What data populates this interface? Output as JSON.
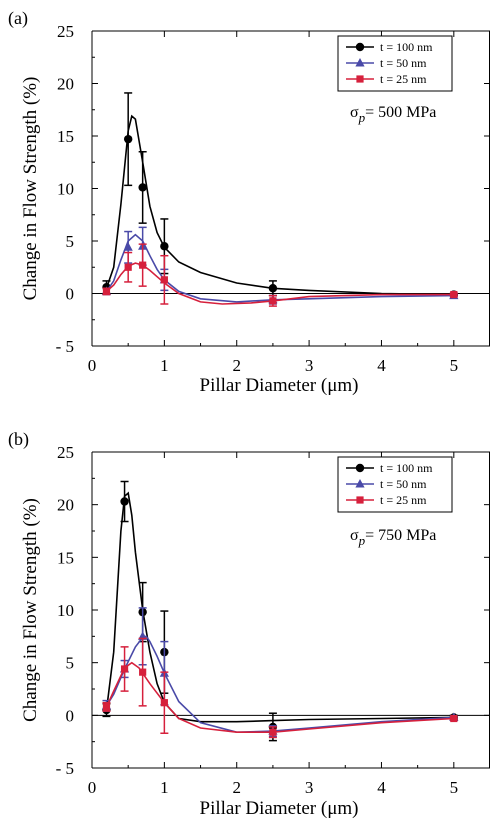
{
  "chart_data": [
    {
      "type": "line",
      "panel_label": "(a)",
      "xlabel": "Pillar Diameter (μm)",
      "ylabel": "Change in Flow Strength (%)",
      "xlim": [
        0,
        5.5
      ],
      "ylim": [
        -5,
        25
      ],
      "x_ticks": [
        0,
        1,
        2,
        3,
        4,
        5
      ],
      "y_ticks": [
        -5,
        0,
        5,
        10,
        15,
        20,
        25
      ],
      "x_tick_labels": [
        "0",
        "1",
        "2",
        "3",
        "4",
        "5"
      ],
      "y_tick_labels": [
        "- 5",
        "0",
        "5",
        "10",
        "15",
        "20",
        "25"
      ],
      "legend_position": "top-right",
      "annotation": {
        "sigma": "σ",
        "sub": "p",
        "text": "= 500 MPa"
      },
      "series": [
        {
          "name": "t = 100 nm",
          "color": "#000000",
          "marker": "circle",
          "points": [
            {
              "x": 0.2,
              "y": 0.6,
              "err": 0.6
            },
            {
              "x": 0.5,
              "y": 14.7,
              "err": 4.4
            },
            {
              "x": 0.7,
              "y": 10.1,
              "err": 3.4
            },
            {
              "x": 1.0,
              "y": 4.5,
              "err": 2.6
            },
            {
              "x": 2.5,
              "y": 0.5,
              "err": 0.7
            },
            {
              "x": 5.0,
              "y": -0.1,
              "err": 0.1
            }
          ],
          "curve": [
            [
              0.2,
              0.5
            ],
            [
              0.3,
              2.5
            ],
            [
              0.4,
              8.5
            ],
            [
              0.5,
              15.5
            ],
            [
              0.55,
              16.9
            ],
            [
              0.6,
              16.6
            ],
            [
              0.7,
              12.5
            ],
            [
              0.8,
              8.3
            ],
            [
              0.9,
              5.8
            ],
            [
              1.0,
              4.4
            ],
            [
              1.2,
              3.0
            ],
            [
              1.5,
              2.0
            ],
            [
              2.0,
              1.0
            ],
            [
              2.5,
              0.5
            ],
            [
              3.0,
              0.3
            ],
            [
              4.0,
              0.0
            ],
            [
              5.0,
              -0.1
            ]
          ]
        },
        {
          "name": "t = 50 nm",
          "color": "#4a4aa8",
          "marker": "triangle",
          "points": [
            {
              "x": 0.2,
              "y": 0.2,
              "err": 0.3
            },
            {
              "x": 0.5,
              "y": 4.4,
              "err": 1.5
            },
            {
              "x": 0.7,
              "y": 4.5,
              "err": 1.8
            },
            {
              "x": 1.0,
              "y": 1.3,
              "err": 1.0
            },
            {
              "x": 2.5,
              "y": -0.6,
              "err": 0.4
            },
            {
              "x": 5.0,
              "y": -0.2,
              "err": 0.1
            }
          ],
          "curve": [
            [
              0.2,
              0.2
            ],
            [
              0.3,
              1.2
            ],
            [
              0.4,
              3.2
            ],
            [
              0.5,
              5.0
            ],
            [
              0.6,
              5.6
            ],
            [
              0.7,
              5.0
            ],
            [
              0.8,
              3.6
            ],
            [
              0.9,
              2.3
            ],
            [
              1.0,
              1.3
            ],
            [
              1.2,
              0.2
            ],
            [
              1.5,
              -0.5
            ],
            [
              2.0,
              -0.8
            ],
            [
              2.5,
              -0.6
            ],
            [
              3.0,
              -0.5
            ],
            [
              4.0,
              -0.3
            ],
            [
              5.0,
              -0.2
            ]
          ]
        },
        {
          "name": "t = 25 nm",
          "color": "#d6203c",
          "marker": "square",
          "points": [
            {
              "x": 0.2,
              "y": 0.2,
              "err": 0.3
            },
            {
              "x": 0.5,
              "y": 2.5,
              "err": 1.4
            },
            {
              "x": 0.7,
              "y": 2.7,
              "err": 2.0
            },
            {
              "x": 1.0,
              "y": 1.3,
              "err": 2.3
            },
            {
              "x": 2.5,
              "y": -0.7,
              "err": 0.5
            },
            {
              "x": 5.0,
              "y": -0.1,
              "err": 0.1
            }
          ],
          "curve": [
            [
              0.2,
              0.2
            ],
            [
              0.3,
              0.8
            ],
            [
              0.4,
              1.8
            ],
            [
              0.5,
              2.6
            ],
            [
              0.6,
              2.9
            ],
            [
              0.7,
              2.7
            ],
            [
              0.8,
              2.2
            ],
            [
              0.9,
              1.6
            ],
            [
              1.0,
              1.0
            ],
            [
              1.2,
              0.0
            ],
            [
              1.5,
              -0.8
            ],
            [
              1.8,
              -1.0
            ],
            [
              2.2,
              -0.9
            ],
            [
              2.5,
              -0.7
            ],
            [
              3.0,
              -0.3
            ],
            [
              4.0,
              -0.1
            ],
            [
              5.0,
              -0.1
            ]
          ]
        }
      ]
    },
    {
      "type": "line",
      "panel_label": "(b)",
      "xlabel": "Pillar Diameter (μm)",
      "ylabel": "Change in Flow Strength (%)",
      "xlim": [
        0,
        5.5
      ],
      "ylim": [
        -5,
        25
      ],
      "x_ticks": [
        0,
        1,
        2,
        3,
        4,
        5
      ],
      "y_ticks": [
        -5,
        0,
        5,
        10,
        15,
        20,
        25
      ],
      "x_tick_labels": [
        "0",
        "1",
        "2",
        "3",
        "4",
        "5"
      ],
      "y_tick_labels": [
        "- 5",
        "0",
        "5",
        "10",
        "15",
        "20",
        "25"
      ],
      "legend_position": "top-right",
      "annotation": {
        "sigma": "σ",
        "sub": "p",
        "text": "= 750 MPa"
      },
      "series": [
        {
          "name": "t = 100 nm",
          "color": "#000000",
          "marker": "circle",
          "points": [
            {
              "x": 0.2,
              "y": 0.5,
              "err": 0.6
            },
            {
              "x": 0.45,
              "y": 20.3,
              "err": 1.9
            },
            {
              "x": 0.7,
              "y": 9.8,
              "err": 2.8
            },
            {
              "x": 1.0,
              "y": 6.0,
              "err": 3.9
            },
            {
              "x": 2.5,
              "y": -1.1,
              "err": 1.3
            },
            {
              "x": 5.0,
              "y": -0.2,
              "err": 0.2
            }
          ],
          "curve": [
            [
              0.2,
              0.5
            ],
            [
              0.3,
              6.0
            ],
            [
              0.4,
              17.5
            ],
            [
              0.45,
              20.8
            ],
            [
              0.5,
              21.1
            ],
            [
              0.55,
              19.0
            ],
            [
              0.6,
              15.5
            ],
            [
              0.7,
              10.0
            ],
            [
              0.8,
              6.0
            ],
            [
              0.9,
              3.0
            ],
            [
              1.0,
              1.2
            ],
            [
              1.2,
              -0.3
            ],
            [
              1.5,
              -0.6
            ],
            [
              2.0,
              -0.6
            ],
            [
              2.5,
              -0.5
            ],
            [
              3.0,
              -0.4
            ],
            [
              4.0,
              -0.3
            ],
            [
              5.0,
              -0.2
            ]
          ]
        },
        {
          "name": "t = 50 nm",
          "color": "#4a4aa8",
          "marker": "triangle",
          "points": [
            {
              "x": 0.2,
              "y": 0.9,
              "err": 0.5
            },
            {
              "x": 0.45,
              "y": 4.4,
              "err": 0.8
            },
            {
              "x": 0.7,
              "y": 7.5,
              "err": 2.7
            },
            {
              "x": 1.0,
              "y": 4.0,
              "err": 3.0
            },
            {
              "x": 2.5,
              "y": -1.5,
              "err": 0.5
            },
            {
              "x": 5.0,
              "y": -0.2,
              "err": 0.1
            }
          ],
          "curve": [
            [
              0.2,
              0.9
            ],
            [
              0.3,
              2.0
            ],
            [
              0.45,
              4.4
            ],
            [
              0.6,
              6.5
            ],
            [
              0.7,
              7.4
            ],
            [
              0.75,
              7.5
            ],
            [
              0.8,
              7.0
            ],
            [
              0.9,
              5.6
            ],
            [
              1.0,
              4.0
            ],
            [
              1.2,
              1.3
            ],
            [
              1.5,
              -0.7
            ],
            [
              2.0,
              -1.6
            ],
            [
              2.5,
              -1.5
            ],
            [
              3.0,
              -1.2
            ],
            [
              4.0,
              -0.6
            ],
            [
              5.0,
              -0.2
            ]
          ]
        },
        {
          "name": "t = 25 nm",
          "color": "#d6203c",
          "marker": "square",
          "points": [
            {
              "x": 0.2,
              "y": 0.8,
              "err": 0.4
            },
            {
              "x": 0.45,
              "y": 4.4,
              "err": 2.1
            },
            {
              "x": 0.7,
              "y": 4.1,
              "err": 3.2
            },
            {
              "x": 1.0,
              "y": 1.2,
              "err": 2.9
            },
            {
              "x": 2.5,
              "y": -1.6,
              "err": 0.5
            },
            {
              "x": 5.0,
              "y": -0.3,
              "err": 0.1
            }
          ],
          "curve": [
            [
              0.2,
              0.8
            ],
            [
              0.3,
              2.3
            ],
            [
              0.45,
              4.5
            ],
            [
              0.55,
              5.0
            ],
            [
              0.65,
              4.5
            ],
            [
              0.8,
              3.0
            ],
            [
              1.0,
              1.2
            ],
            [
              1.2,
              -0.3
            ],
            [
              1.5,
              -1.2
            ],
            [
              2.0,
              -1.6
            ],
            [
              2.5,
              -1.6
            ],
            [
              3.0,
              -1.3
            ],
            [
              4.0,
              -0.7
            ],
            [
              5.0,
              -0.3
            ]
          ]
        }
      ]
    }
  ]
}
